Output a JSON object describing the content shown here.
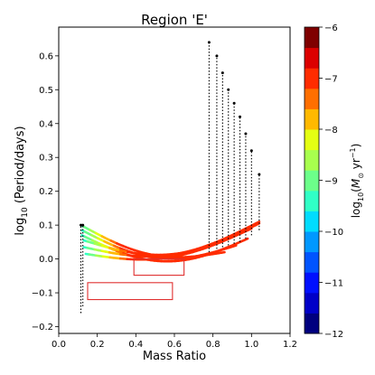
{
  "chart_data": {
    "type": "scatter",
    "title": "Region 'E'",
    "xlabel": "Mass Ratio",
    "ylabel": "log$_{10}$ (Period/days)",
    "ylabel_main": "log",
    "ylabel_sub": "10",
    "ylabel_rest": " (Period/days)",
    "xlim": [
      0.0,
      1.2
    ],
    "ylim": [
      -0.22,
      0.685
    ],
    "xticks": [
      0.0,
      0.2,
      0.4,
      0.6,
      0.8,
      1.0,
      1.2
    ],
    "xtick_labels": [
      "0.0",
      "0.2",
      "0.4",
      "0.6",
      "0.8",
      "1.0",
      "1.2"
    ],
    "yticks": [
      -0.2,
      -0.1,
      0.0,
      0.1,
      0.2,
      0.3,
      0.4,
      0.5,
      0.6
    ],
    "ytick_labels": [
      "−0.2",
      "−0.1",
      "0.0",
      "0.1",
      "0.2",
      "0.3",
      "0.4",
      "0.5",
      "0.6"
    ],
    "grid": false,
    "colorbar": {
      "label": "log10(M⊙ yr−1)",
      "label_main": "log",
      "label_sub": "10",
      "label_open": "(",
      "label_M": "M",
      "label_odot": "⊙",
      "label_yr": " yr",
      "label_sup": "−1",
      "label_close": ")",
      "min": -12,
      "max": -6,
      "ticks": [
        -12,
        -11,
        -10,
        -9,
        -8,
        -7,
        -6
      ],
      "tick_labels": [
        "−12",
        "−11",
        "−10",
        "−9",
        "−8",
        "−7",
        "−6"
      ],
      "bands": [
        "#00007f",
        "#0000c8",
        "#0010ff",
        "#0054ff",
        "#0098ff",
        "#00dcfe",
        "#30ffc6",
        "#6cff8a",
        "#a8ff4e",
        "#e4ff13",
        "#ffb900",
        "#ff6f00",
        "#ff2c00",
        "#dc0000",
        "#7f0000"
      ]
    },
    "regions": [
      {
        "x": [
          0.39,
          0.65
        ],
        "y": [
          -0.048,
          0.0
        ]
      },
      {
        "x": [
          0.15,
          0.59
        ],
        "y": [
          -0.12,
          -0.07
        ]
      }
    ],
    "tracks": [
      {
        "x0": 0.115,
        "x1": 0.86,
        "y0": 0.1,
        "y1": 0.02,
        "peak": 0.04
      },
      {
        "x0": 0.12,
        "x1": 0.92,
        "y0": 0.085,
        "y1": 0.04,
        "peak": 0.05
      },
      {
        "x0": 0.12,
        "x1": 0.98,
        "y0": 0.07,
        "y1": 0.06,
        "peak": 0.06
      },
      {
        "x0": 0.13,
        "x1": 1.04,
        "y0": 0.055,
        "y1": 0.105,
        "peak": 0.055
      },
      {
        "x0": 0.13,
        "x1": 1.04,
        "y0": 0.035,
        "y1": 0.11,
        "peak": 0.05
      },
      {
        "x0": 0.14,
        "x1": 1.0,
        "y0": 0.015,
        "y1": 0.09,
        "peak": 0.04
      }
    ],
    "vertical_tracks": [
      {
        "x": 0.78,
        "y0": 0.02,
        "y1": 0.64
      },
      {
        "x": 0.82,
        "y0": 0.03,
        "y1": 0.6
      },
      {
        "x": 0.85,
        "y0": 0.035,
        "y1": 0.55
      },
      {
        "x": 0.88,
        "y0": 0.04,
        "y1": 0.5
      },
      {
        "x": 0.91,
        "y0": 0.045,
        "y1": 0.46
      },
      {
        "x": 0.94,
        "y0": 0.05,
        "y1": 0.42
      },
      {
        "x": 0.97,
        "y0": 0.06,
        "y1": 0.37
      },
      {
        "x": 1.0,
        "y0": 0.07,
        "y1": 0.32
      },
      {
        "x": 1.04,
        "y0": 0.085,
        "y1": 0.25
      },
      {
        "x": 0.115,
        "y0": -0.16,
        "y1": 0.1
      },
      {
        "x": 0.125,
        "y0": -0.14,
        "y1": 0.1
      }
    ]
  }
}
